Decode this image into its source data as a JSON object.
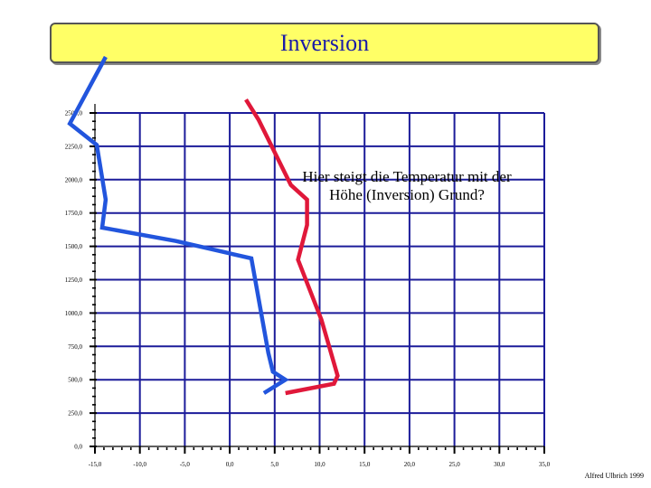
{
  "title": "Inversion",
  "annotation": "Hier steigt die Temperatur mit der Höhe (Inversion) Grund?",
  "credit": "Alfred Ulbrich 1999",
  "colors": {
    "title_bg": "#ffff66",
    "title_text": "#1a1aa8",
    "grid": "#1c1c9a",
    "axis": "#000000",
    "environment_line": "#2255dd",
    "temperature_line": "#e0183a"
  },
  "chart_data": {
    "type": "line",
    "title": "Inversion",
    "xlabel": "",
    "ylabel": "",
    "xlim": [
      -15,
      35
    ],
    "ylim": [
      0,
      2500
    ],
    "grid": true,
    "x_ticks": [
      -15,
      -10,
      -5,
      0,
      5,
      10,
      15,
      20,
      25,
      30,
      35
    ],
    "x_tick_labels": [
      "-15,0",
      "-10,0",
      "-5,0",
      "0,0",
      "5,0",
      "10,0",
      "15,0",
      "20,0",
      "25,0",
      "30,0",
      "35,0"
    ],
    "y_ticks": [
      0,
      250,
      500,
      750,
      1000,
      1250,
      1500,
      1750,
      2000,
      2250,
      2500
    ],
    "y_tick_labels": [
      "0,0",
      "250,0",
      "500,0",
      "750,0",
      "1000,0",
      "1250,0",
      "1500,0",
      "1750,0",
      "2000,0",
      "2250,0",
      "2500,0"
    ],
    "series": [
      {
        "key": "blue",
        "color": "#2255dd",
        "points": [
          {
            "x": -13.8,
            "y": 2920
          },
          {
            "x": -17.8,
            "y": 2420
          },
          {
            "x": -14.8,
            "y": 2260
          },
          {
            "x": -13.8,
            "y": 1850
          },
          {
            "x": -14.2,
            "y": 1640
          },
          {
            "x": -6.0,
            "y": 1540
          },
          {
            "x": 2.4,
            "y": 1410
          },
          {
            "x": 4.3,
            "y": 700
          },
          {
            "x": 4.8,
            "y": 560
          },
          {
            "x": 6.2,
            "y": 500
          },
          {
            "x": 3.8,
            "y": 400
          }
        ]
      },
      {
        "key": "red",
        "color": "#e0183a",
        "points": [
          {
            "x": 1.8,
            "y": 2600
          },
          {
            "x": 3.2,
            "y": 2450
          },
          {
            "x": 6.8,
            "y": 1960
          },
          {
            "x": 8.6,
            "y": 1850
          },
          {
            "x": 8.6,
            "y": 1660
          },
          {
            "x": 7.6,
            "y": 1400
          },
          {
            "x": 10.2,
            "y": 950
          },
          {
            "x": 12.0,
            "y": 530
          },
          {
            "x": 11.6,
            "y": 470
          },
          {
            "x": 6.2,
            "y": 400
          }
        ]
      }
    ]
  }
}
